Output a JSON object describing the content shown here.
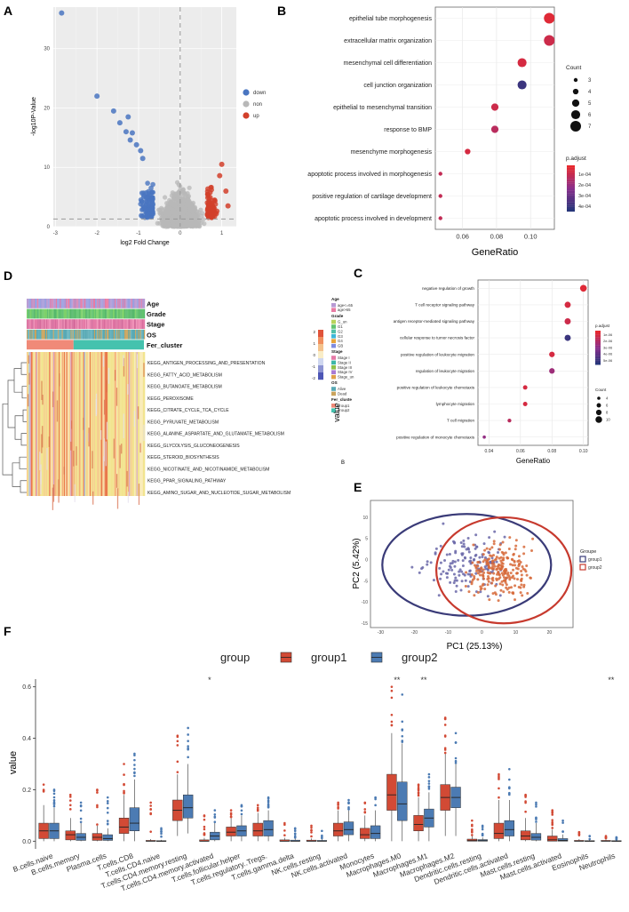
{
  "colors": {
    "down": "#4a76c1",
    "non": "#b8b8b8",
    "up": "#d2402b",
    "panel_bg": "#ececec",
    "grid": "#ffffff",
    "group1": "#d24a35",
    "group2": "#4c7bb3",
    "pc_group1": "#3a3b78",
    "pc_group2": "#c73a2e",
    "padj_high": "#e8292e",
    "padj_low": "#27367a"
  },
  "chart_data": [
    {
      "panel": "A",
      "type": "scatter",
      "xlabel": "log2 Fold Change",
      "ylabel": "-log10P-Value",
      "xlim": [
        -3.05,
        1.35
      ],
      "ylim": [
        0,
        37
      ],
      "xticks": [
        -3,
        -2,
        -1,
        0,
        1
      ],
      "yticks": [
        0,
        10,
        20,
        30
      ],
      "legend": [
        "down",
        "non",
        "up"
      ],
      "highlight_points": [
        {
          "x": -2.85,
          "y": 36,
          "group": "down"
        },
        {
          "x": -2.0,
          "y": 22,
          "group": "down"
        },
        {
          "x": -1.6,
          "y": 19.5,
          "group": "down"
        },
        {
          "x": -1.3,
          "y": 16,
          "group": "down"
        },
        {
          "x": -1.2,
          "y": 14.6,
          "group": "down"
        },
        {
          "x": -1.05,
          "y": 13.8,
          "group": "down"
        },
        {
          "x": -0.95,
          "y": 12.8,
          "group": "down"
        },
        {
          "x": -1.45,
          "y": 17.5,
          "group": "down"
        },
        {
          "x": -1.15,
          "y": 15.8,
          "group": "down"
        },
        {
          "x": -0.9,
          "y": 11.5,
          "group": "down"
        },
        {
          "x": -1.25,
          "y": 18.5,
          "group": "down"
        },
        {
          "x": 1.0,
          "y": 10.5,
          "group": "up"
        },
        {
          "x": 0.95,
          "y": 8.6,
          "group": "up"
        },
        {
          "x": 1.1,
          "y": 6.0,
          "group": "up"
        },
        {
          "x": 1.15,
          "y": 3.5,
          "group": "up"
        }
      ]
    },
    {
      "panel": "B",
      "type": "scatter",
      "xlabel": "GeneRatio",
      "categories": [
        "epithelial tube morphogenesis",
        "extracellular matrix organization",
        "mesenchymal cell differentiation",
        "cell junction organization",
        "epithelial to mesenchymal transition",
        "response to BMP",
        "mesenchyme morphogenesis",
        "apoptotic process involved in morphogenesis",
        "positive regulation of cartilage development",
        "apoptotic process involved in development"
      ],
      "values": [
        0.111,
        0.111,
        0.095,
        0.095,
        0.079,
        0.079,
        0.063,
        0.047,
        0.047,
        0.047
      ],
      "counts": [
        7,
        7,
        6,
        6,
        5,
        5,
        4,
        3,
        3,
        3
      ],
      "padj_frac": [
        0.95,
        0.85,
        0.9,
        0.1,
        0.85,
        0.75,
        0.9,
        0.8,
        0.8,
        0.8
      ],
      "xlim": [
        0.044,
        0.114
      ],
      "xticks": [
        0.06,
        0.08,
        0.1
      ],
      "xticklabels": [
        "0.06",
        "0.08",
        "0.10"
      ],
      "legend_count_title": "Count",
      "legend_count_values": [
        "3",
        "4",
        "5",
        "6",
        "7"
      ],
      "legend_padj_title": "p.adjust",
      "legend_padj_labels": [
        "1e-04",
        "2e-04",
        "3e-04",
        "4e-04"
      ]
    },
    {
      "panel": "C",
      "type": "scatter",
      "xlabel": "GeneRatio",
      "categories": [
        "negative regulation of growth",
        "T cell receptor signaling pathway",
        "antigen receptor-mediated signaling pathway",
        "cellular response to tumor necrosis factor",
        "positive regulation of leukocyte migration",
        "regulation of leukocyte migration",
        "positive regulation of leukocyte chemotaxis",
        "lymphocyte migration",
        "T cell migration",
        "positive regulation of monocyte chemotaxis"
      ],
      "values": [
        0.1,
        0.09,
        0.09,
        0.09,
        0.08,
        0.08,
        0.063,
        0.063,
        0.053,
        0.037
      ],
      "counts": [
        10,
        9,
        9,
        9,
        8,
        8,
        6,
        6,
        5,
        4
      ],
      "padj_frac": [
        0.95,
        0.9,
        0.85,
        0.1,
        0.9,
        0.6,
        0.9,
        0.9,
        0.75,
        0.55
      ],
      "xlim": [
        0.033,
        0.103
      ],
      "xticks": [
        0.04,
        0.06,
        0.08,
        0.1
      ],
      "xticklabels": [
        "0.04",
        "0.06",
        "0.08",
        "0.10"
      ],
      "legend_padj_title": "p.adjust",
      "legend_padj_labels": [
        "1e-06",
        "2e-06",
        "3e-06",
        "4e-06",
        "5e-06"
      ],
      "legend_count_title": "Count",
      "legend_count_values": [
        "4",
        "6",
        "8",
        "10"
      ]
    },
    {
      "panel": "D",
      "type": "heatmap",
      "annotation_rows": [
        "Age",
        "Grade",
        "Stage",
        "OS",
        "Fer_cluster"
      ],
      "rows": [
        "KEGG_ANTIGEN_PROCESSING_AND_PRESENTATION",
        "KEGG_FATTY_ACID_METABOLISM",
        "KEGG_BUTANOATE_METABOLISM",
        "KEGG_PEROXISOME",
        "KEGG_CITRATE_CYCLE_TCA_CYCLE",
        "KEGG_PYRUVATE_METABOLISM",
        "KEGG_ALANINE_ASPARTATE_AND_GLUTAMATE_METABOLISM",
        "KEGG_GLYCOLYSIS_GLUCONEOGENESIS",
        "KEGG_STEROID_BIOSYNTHESIS",
        "KEGG_NICOTINATE_AND_NICOTINAMIDE_METABOLISM",
        "KEGG_PPAR_SIGNALING_PATHWAY",
        "KEGG_AMINO_SUGAR_AND_NUCLEOTIDE_SUGAR_METABOLISM"
      ],
      "value_ticks": [
        "2",
        "1",
        "0",
        "-1",
        "-2"
      ],
      "value_label": "value",
      "legend": {
        "Age": [
          "age<=65",
          "age>65"
        ],
        "Grade": [
          "G_un",
          "G1",
          "G2",
          "G3",
          "G4",
          "GB"
        ],
        "Stage": [
          "Stage I",
          "Stage II",
          "Stage III",
          "Stage IV",
          "Stage_un"
        ],
        "OS": [
          "Alive",
          "Dead"
        ],
        "Fer_cluste": [
          "group1",
          "group2"
        ]
      },
      "group1_fraction": 0.4,
      "stray_label": "B"
    },
    {
      "panel": "E",
      "type": "scatter",
      "xlabel": "PC1 (25.13%)",
      "ylabel": "PC2 (5.42%)",
      "xlim": [
        -33,
        27
      ],
      "ylim": [
        -16,
        14
      ],
      "xticks": [
        -30,
        -20,
        -10,
        0,
        10,
        20
      ],
      "yticks": [
        -15,
        -10,
        -5,
        0,
        5,
        10
      ],
      "legend_title": "Groupe",
      "legend": [
        "group1",
        "group2"
      ],
      "ellipses": [
        {
          "group": "group1",
          "cx": -4.5,
          "cy": -1.2,
          "rx": 25,
          "ry": 12
        },
        {
          "group": "group2",
          "cx": 6.5,
          "cy": -2.5,
          "rx": 20,
          "ry": 12.5
        }
      ]
    },
    {
      "panel": "F",
      "type": "box",
      "ylabel": "value",
      "legend_title": "group",
      "legend": [
        "group1",
        "group2"
      ],
      "ylim": [
        -0.03,
        0.63
      ],
      "yticks": [
        0.0,
        0.2,
        0.4,
        0.6
      ],
      "yticklabels": [
        "0.0",
        "0.2",
        "0.4",
        "0.6"
      ],
      "categories": [
        "B.cells.naive",
        "B.cells.memory",
        "Plasma.cells",
        "T.cells.CD8",
        "T.cells.CD4.naive",
        "T.cells.CD4.memory.resting",
        "T.cells.CD4.memory.activated",
        "T.cells.follicular.helper",
        "T.cells.regulatory..Tregs.",
        "T.cells.gamma.delta",
        "NK.cells.resting",
        "NK.cells.activated",
        "Monocytes",
        "Macrophages.M0",
        "Macrophages.M1",
        "Macrophages.M2",
        "Dendritic.cells.resting",
        "Dendritic.cells.activated",
        "Mast.cells.resting",
        "Mast.cells.activated",
        "Eosinophils",
        "Neutrophils"
      ],
      "significance": [
        "",
        "",
        "",
        "",
        "",
        "",
        "*",
        "",
        "",
        "",
        "",
        "",
        "",
        "**",
        "**",
        "",
        "",
        "",
        "",
        "",
        "",
        "**"
      ],
      "group1": [
        [
          0,
          0.01,
          0.04,
          0.07,
          0.14,
          0.22
        ],
        [
          0,
          0.005,
          0.025,
          0.04,
          0.09,
          0.18
        ],
        [
          0,
          0.003,
          0.015,
          0.03,
          0.06,
          0.2
        ],
        [
          0,
          0.03,
          0.055,
          0.09,
          0.18,
          0.3
        ],
        [
          0,
          0,
          0,
          0.003,
          0.01,
          0.15
        ],
        [
          0.02,
          0.08,
          0.12,
          0.16,
          0.26,
          0.41
        ],
        [
          0,
          0,
          0,
          0.005,
          0.015,
          0.1
        ],
        [
          0,
          0.02,
          0.035,
          0.055,
          0.09,
          0.12
        ],
        [
          0,
          0.02,
          0.04,
          0.07,
          0.11,
          0.14
        ],
        [
          0,
          0,
          0,
          0.005,
          0.015,
          0.07
        ],
        [
          0,
          0,
          0,
          0.004,
          0.012,
          0.06
        ],
        [
          0,
          0.02,
          0.04,
          0.07,
          0.12,
          0.15
        ],
        [
          0,
          0.01,
          0.025,
          0.05,
          0.1,
          0.15
        ],
        [
          0,
          0.12,
          0.18,
          0.26,
          0.42,
          0.6
        ],
        [
          0,
          0.04,
          0.065,
          0.1,
          0.17,
          0.22
        ],
        [
          0.02,
          0.12,
          0.17,
          0.22,
          0.34,
          0.48
        ],
        [
          0,
          0,
          0.002,
          0.008,
          0.02,
          0.08
        ],
        [
          0,
          0.01,
          0.03,
          0.07,
          0.16,
          0.26
        ],
        [
          0,
          0.005,
          0.02,
          0.04,
          0.09,
          0.18
        ],
        [
          0,
          0,
          0.005,
          0.02,
          0.045,
          0.12
        ],
        [
          0,
          0,
          0,
          0.003,
          0.008,
          0.035
        ],
        [
          0,
          0,
          0,
          0.003,
          0.01,
          0.02
        ]
      ],
      "group2": [
        [
          0,
          0.01,
          0.04,
          0.07,
          0.13,
          0.2
        ],
        [
          0,
          0.003,
          0.015,
          0.03,
          0.07,
          0.15
        ],
        [
          0,
          0.003,
          0.01,
          0.025,
          0.05,
          0.17
        ],
        [
          0,
          0.04,
          0.07,
          0.13,
          0.24,
          0.34
        ],
        [
          0,
          0,
          0,
          0.002,
          0.006,
          0.05
        ],
        [
          0.03,
          0.09,
          0.13,
          0.18,
          0.3,
          0.44
        ],
        [
          0,
          0.005,
          0.02,
          0.035,
          0.07,
          0.12
        ],
        [
          0,
          0.02,
          0.04,
          0.06,
          0.1,
          0.14
        ],
        [
          0,
          0.02,
          0.045,
          0.08,
          0.12,
          0.17
        ],
        [
          0,
          0,
          0,
          0.004,
          0.012,
          0.05
        ],
        [
          0,
          0,
          0,
          0.003,
          0.01,
          0.04
        ],
        [
          0,
          0.025,
          0.045,
          0.075,
          0.12,
          0.16
        ],
        [
          0,
          0.01,
          0.03,
          0.06,
          0.12,
          0.17
        ],
        [
          0,
          0.08,
          0.145,
          0.23,
          0.38,
          0.57
        ],
        [
          0,
          0.055,
          0.09,
          0.125,
          0.19,
          0.26
        ],
        [
          0.02,
          0.13,
          0.17,
          0.21,
          0.3,
          0.42
        ],
        [
          0,
          0,
          0.002,
          0.006,
          0.015,
          0.06
        ],
        [
          0,
          0.02,
          0.045,
          0.08,
          0.16,
          0.28
        ],
        [
          0,
          0.004,
          0.015,
          0.03,
          0.07,
          0.15
        ],
        [
          0,
          0,
          0.003,
          0.01,
          0.03,
          0.08
        ],
        [
          0,
          0,
          0,
          0.002,
          0.005,
          0.02
        ],
        [
          0,
          0,
          0,
          0.002,
          0.004,
          0.015
        ]
      ]
    }
  ],
  "panel_labels": [
    "A",
    "B",
    "C",
    "D",
    "E",
    "F"
  ]
}
